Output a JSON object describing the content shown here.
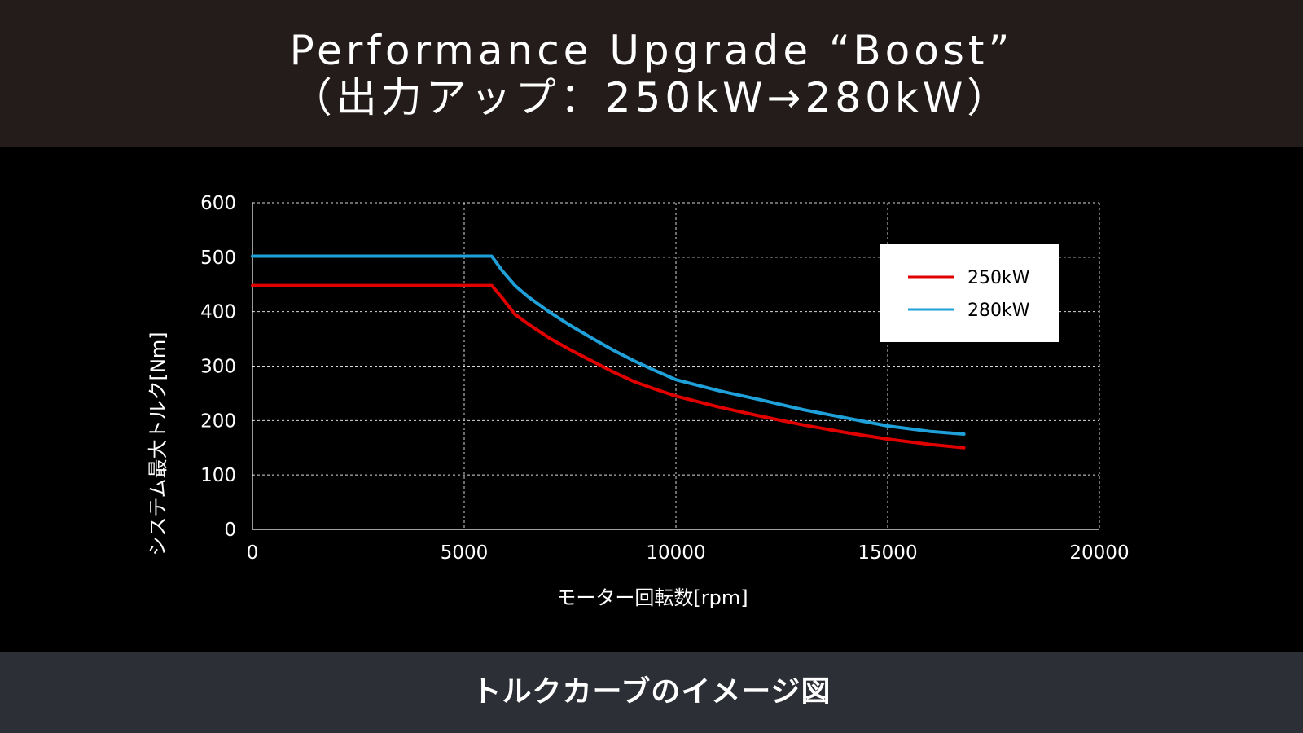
{
  "header": {
    "title_line1": "Performance Upgrade “Boost”",
    "title_line2": "（出力アップ：250kW→280kW）"
  },
  "footer": {
    "caption": "トルクカーブのイメージ図"
  },
  "colors": {
    "header_bg": "#231c1a",
    "chart_bg": "#000000",
    "footer_bg": "#2c2f35",
    "series_250": "#e00000",
    "series_280": "#1fa0d8",
    "grid": "#ffffff"
  },
  "chart_data": {
    "type": "line",
    "title": "",
    "xlabel": "モーター回転数[rpm]",
    "ylabel": "システム最大トルク[Nm]",
    "xlim": [
      0,
      20000
    ],
    "ylim": [
      0,
      600
    ],
    "xticks": [
      0,
      5000,
      10000,
      15000,
      20000
    ],
    "yticks": [
      0,
      100,
      200,
      300,
      400,
      500,
      600
    ],
    "xtick_labels": [
      "0",
      "5000",
      "10000",
      "15000",
      "20000"
    ],
    "ytick_labels": [
      "0",
      "100",
      "200",
      "300",
      "400",
      "500",
      "600"
    ],
    "grid": true,
    "legend_position": "top-right",
    "series": [
      {
        "name": "250kW",
        "color": "#e00000",
        "x": [
          0,
          5650,
          5900,
          6200,
          6500,
          7000,
          7500,
          8000,
          8500,
          9000,
          9500,
          10000,
          11000,
          12000,
          13000,
          14000,
          15000,
          16000,
          16800
        ],
        "y": [
          448,
          448,
          425,
          395,
          378,
          352,
          330,
          310,
          290,
          272,
          258,
          245,
          225,
          208,
          192,
          178,
          166,
          156,
          150
        ]
      },
      {
        "name": "280kW",
        "color": "#1fa0d8",
        "x": [
          0,
          5650,
          5900,
          6200,
          6500,
          7000,
          7500,
          8000,
          8500,
          9000,
          9500,
          10000,
          11000,
          12000,
          13000,
          14000,
          15000,
          16000,
          16800
        ],
        "y": [
          502,
          502,
          475,
          448,
          428,
          400,
          375,
          352,
          330,
          310,
          292,
          275,
          255,
          238,
          220,
          205,
          190,
          180,
          175
        ]
      }
    ]
  }
}
